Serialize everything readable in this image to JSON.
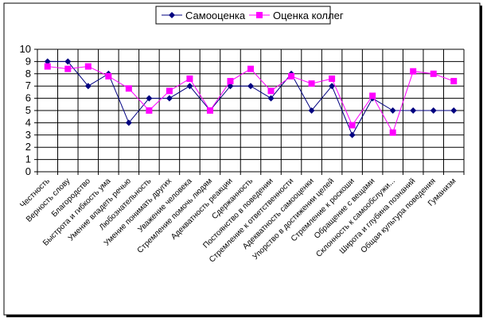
{
  "chart_data": {
    "type": "line",
    "title": "",
    "xlabel": "",
    "ylabel": "",
    "ylim": [
      0,
      10
    ],
    "yticks": [
      "0",
      "1",
      "2",
      "3",
      "4",
      "5",
      "6",
      "7",
      "8",
      "9",
      "10"
    ],
    "grid": true,
    "legend_position": "top-center",
    "categories": [
      "Честность",
      "Верность слову",
      "Благородство",
      "Быстрота и гибкость ума",
      "Умение владеть речью",
      "Любознательность",
      "Умение понимать других",
      "Уважение человека",
      "Стремление помочь людям",
      "Адекватность реакции",
      "Сдержанность",
      "Постоянство в поведении",
      "Стремление к ответственности",
      "Адекватность самооценки",
      "Упорство в достижении целей",
      "Стремление к роскоши",
      "Обращение с вещами",
      "Склонность к самообслужи...",
      "Широта и глубина познаний",
      "Общая культура поведения",
      "Гуманизм"
    ],
    "series": [
      {
        "name": "Самооценка",
        "color": "#000080",
        "marker": "diamond",
        "values": [
          9,
          9,
          7,
          8,
          4,
          6,
          6,
          7,
          5,
          7,
          7,
          6,
          8,
          5,
          7,
          3,
          6,
          5,
          5,
          5,
          5
        ]
      },
      {
        "name": "Оценка коллег",
        "color": "#ff00ff",
        "marker": "square",
        "values": [
          8.6,
          8.4,
          8.6,
          7.8,
          6.8,
          5,
          6.6,
          7.6,
          5,
          7.4,
          8.4,
          6.6,
          7.8,
          7.2,
          7.6,
          3.8,
          6.2,
          3.2,
          8.2,
          8,
          7.4
        ]
      }
    ]
  }
}
